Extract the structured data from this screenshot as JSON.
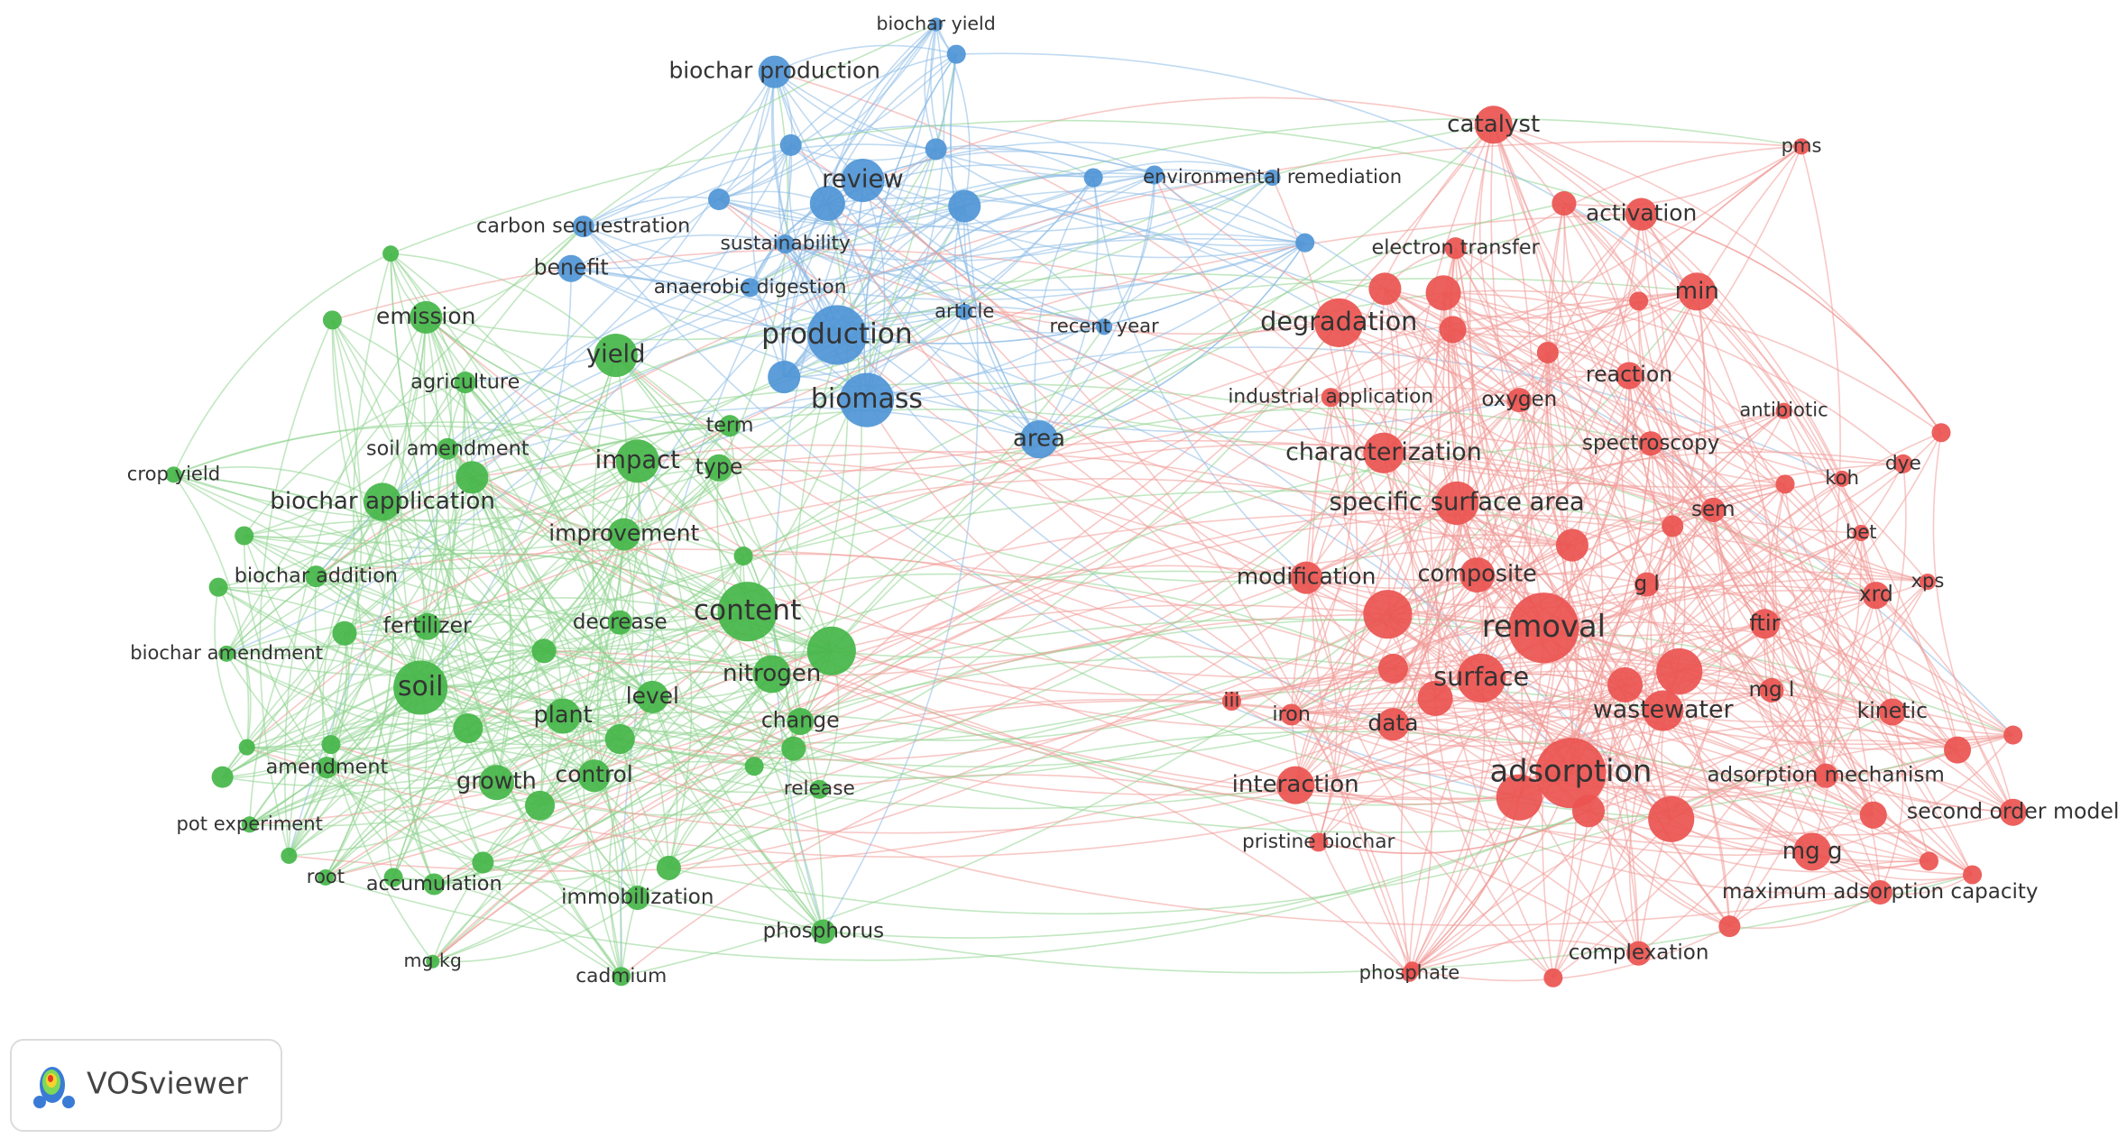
{
  "nodes": [
    {
      "label": "biochar yield"
    },
    {
      "label": "biochar production"
    },
    {
      "label": "review"
    },
    {
      "label": "carbon sequestration"
    },
    {
      "label": "benefit"
    },
    {
      "label": "sustainability"
    },
    {
      "label": "anaerobic digestion"
    },
    {
      "label": "production"
    },
    {
      "label": "article"
    },
    {
      "label": "recent year"
    },
    {
      "label": "biomass"
    },
    {
      "label": "area"
    },
    {
      "label": "environmental remediation"
    },
    {
      "label": "emission"
    },
    {
      "label": "agriculture"
    },
    {
      "label": "yield"
    },
    {
      "label": "soil amendment"
    },
    {
      "label": "impact"
    },
    {
      "label": "term"
    },
    {
      "label": "type"
    },
    {
      "label": "crop yield"
    },
    {
      "label": "biochar application"
    },
    {
      "label": "improvement"
    },
    {
      "label": "biochar addition"
    },
    {
      "label": "content"
    },
    {
      "label": "fertilizer"
    },
    {
      "label": "decrease"
    },
    {
      "label": "nitrogen"
    },
    {
      "label": "biochar amendment"
    },
    {
      "label": "soil"
    },
    {
      "label": "plant"
    },
    {
      "label": "level"
    },
    {
      "label": "change"
    },
    {
      "label": "amendment"
    },
    {
      "label": "growth"
    },
    {
      "label": "control"
    },
    {
      "label": "release"
    },
    {
      "label": "pot experiment"
    },
    {
      "label": "root"
    },
    {
      "label": "accumulation"
    },
    {
      "label": "immobilization"
    },
    {
      "label": "phosphorus"
    },
    {
      "label": "mg kg"
    },
    {
      "label": "cadmium"
    },
    {
      "label": "catalyst"
    },
    {
      "label": "pms"
    },
    {
      "label": "activation"
    },
    {
      "label": "electron transfer"
    },
    {
      "label": "min"
    },
    {
      "label": "degradation"
    },
    {
      "label": "reaction"
    },
    {
      "label": "industrial application"
    },
    {
      "label": "oxygen"
    },
    {
      "label": "antibiotic"
    },
    {
      "label": "characterization"
    },
    {
      "label": "spectroscopy"
    },
    {
      "label": "koh"
    },
    {
      "label": "dye"
    },
    {
      "label": "specific surface area"
    },
    {
      "label": "sem"
    },
    {
      "label": "bet"
    },
    {
      "label": "modification"
    },
    {
      "label": "composite"
    },
    {
      "label": "g l"
    },
    {
      "label": "xrd"
    },
    {
      "label": "xps"
    },
    {
      "label": "removal"
    },
    {
      "label": "ftir"
    },
    {
      "label": "surface"
    },
    {
      "label": "mg l"
    },
    {
      "label": "iii"
    },
    {
      "label": "iron"
    },
    {
      "label": "data"
    },
    {
      "label": "wastewater"
    },
    {
      "label": "kinetic"
    },
    {
      "label": "adsorption"
    },
    {
      "label": "adsorption mechanism"
    },
    {
      "label": "interaction"
    },
    {
      "label": "second order model"
    },
    {
      "label": "pristine biochar"
    },
    {
      "label": "mg g"
    },
    {
      "label": "maximum adsorption capacity"
    },
    {
      "label": "complexation"
    },
    {
      "label": "phosphate"
    }
  ],
  "logo": {
    "text": "VOSviewer"
  }
}
